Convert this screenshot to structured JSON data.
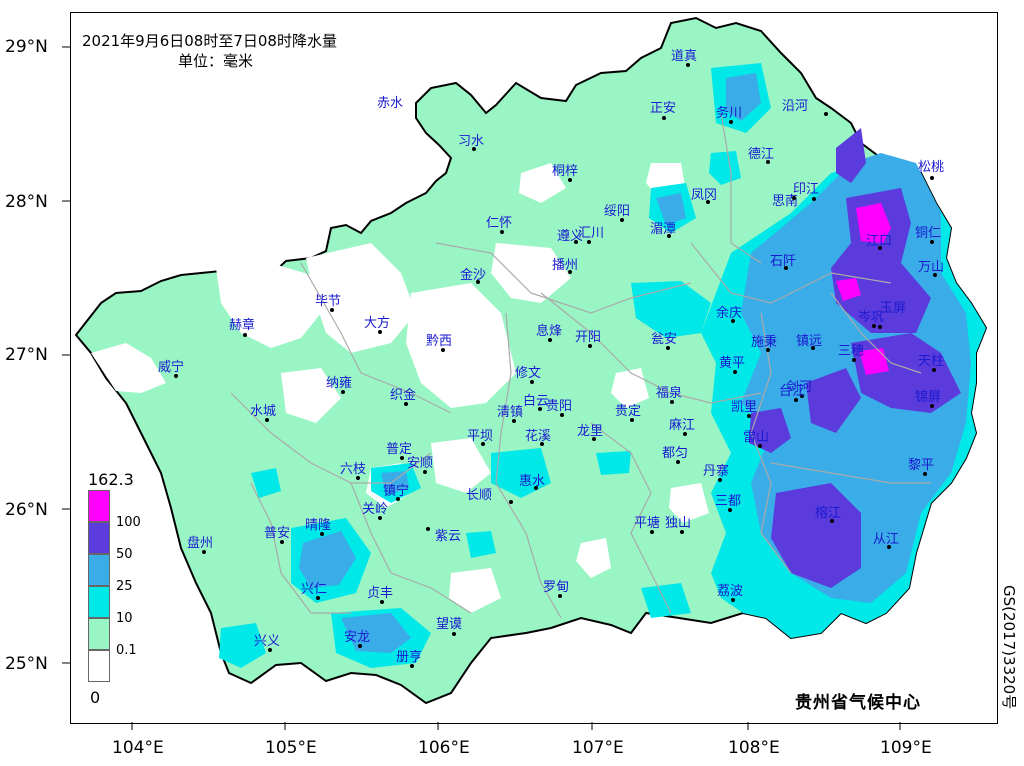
{
  "title": {
    "line1": "2021年9月6日08时至7日08时降水量",
    "line2": "单位：毫米"
  },
  "center_name": "贵州省气候中心",
  "map_code": "GS(2017)3320号",
  "axes": {
    "lat_ticks": [
      "29°N",
      "28°N",
      "27°N",
      "26°N",
      "25°N"
    ],
    "lon_ticks": [
      "104°E",
      "105°E",
      "106°E",
      "107°E",
      "108°E",
      "109°E"
    ]
  },
  "legend": {
    "max_label": "162.3",
    "min_label": "0",
    "levels": [
      {
        "label": "100",
        "color": "#ff00ff"
      },
      {
        "label": "50",
        "color": "#5b3bdc"
      },
      {
        "label": "25",
        "color": "#3aace8"
      },
      {
        "label": "10",
        "color": "#00e8e8"
      },
      {
        "label": "0.1",
        "color": "#9af5c5"
      },
      {
        "label": "",
        "color": "#ffffff"
      }
    ]
  },
  "colors": {
    "land_light": "#9af5c5",
    "rain_10": "#00e8e8",
    "rain_25": "#3aace8",
    "rain_50": "#5b3bdc",
    "rain_100": "#ff00ff",
    "border": "#000000",
    "county_line": "#aaaaaa",
    "city_text": "#1a1ad0"
  },
  "cities": [
    "赤水",
    "习水",
    "桐梓",
    "正安",
    "务川",
    "道真",
    "沿河",
    "德江",
    "印江",
    "思南",
    "松桃",
    "凤冈",
    "绥阳",
    "湄潭",
    "仁怀",
    "遵义",
    "汇川",
    "播州",
    "金沙",
    "毕节",
    "大方",
    "赫章",
    "威宁",
    "黔西",
    "息烽",
    "开阳",
    "瓮安",
    "余庆",
    "石阡",
    "江口",
    "铜仁",
    "万山",
    "玉屏",
    "岑巩",
    "镇远",
    "施秉",
    "三穗",
    "天柱",
    "锦屏",
    "黎平",
    "榕江",
    "从江",
    "剑河",
    "台江",
    "雷山",
    "凯里",
    "黄平",
    "福泉",
    "麻江",
    "都匀",
    "丹寨",
    "三都",
    "荔波",
    "独山",
    "平塘",
    "贵定",
    "龙里",
    "花溪",
    "白云",
    "贵阳",
    "修文",
    "清镇",
    "平坝",
    "长顺",
    "惠水",
    "罗甸",
    "织金",
    "纳雍",
    "水城",
    "六枝",
    "普定",
    "安顺",
    "镇宁",
    "关岭",
    "晴隆",
    "普安",
    "盘州",
    "兴仁",
    "贞丰",
    "紫云",
    "望谟",
    "册亨",
    "安龙",
    "兴义"
  ]
}
